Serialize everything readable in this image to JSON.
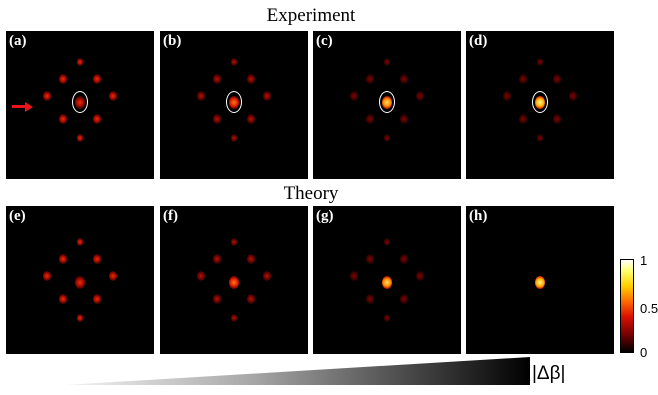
{
  "titles": {
    "experiment": "Experiment",
    "theory": "Theory"
  },
  "panels": [
    {
      "label": "(a)",
      "row": "experiment",
      "circled": true,
      "center_intensity": 0.55,
      "side_intensity": 0.45
    },
    {
      "label": "(b)",
      "row": "experiment",
      "circled": true,
      "center_intensity": 0.65,
      "side_intensity": 0.35
    },
    {
      "label": "(c)",
      "row": "experiment",
      "circled": true,
      "center_intensity": 0.9,
      "side_intensity": 0.25
    },
    {
      "label": "(d)",
      "row": "experiment",
      "circled": true,
      "center_intensity": 1.0,
      "side_intensity": 0.15
    },
    {
      "label": "(e)",
      "row": "theory",
      "circled": false,
      "center_intensity": 0.55,
      "side_intensity": 0.45
    },
    {
      "label": "(f)",
      "row": "theory",
      "circled": false,
      "center_intensity": 0.65,
      "side_intensity": 0.35
    },
    {
      "label": "(g)",
      "row": "theory",
      "circled": false,
      "center_intensity": 0.9,
      "side_intensity": 0.22
    },
    {
      "label": "(h)",
      "row": "theory",
      "circled": false,
      "center_intensity": 1.0,
      "side_intensity": 0.0
    }
  ],
  "colorbar": {
    "ticks": [
      "1",
      "0.5",
      "0"
    ]
  },
  "axis": {
    "label": "|Δβ|"
  },
  "colors": {
    "arrow": "#e8141a",
    "ring": "#ffffff"
  }
}
